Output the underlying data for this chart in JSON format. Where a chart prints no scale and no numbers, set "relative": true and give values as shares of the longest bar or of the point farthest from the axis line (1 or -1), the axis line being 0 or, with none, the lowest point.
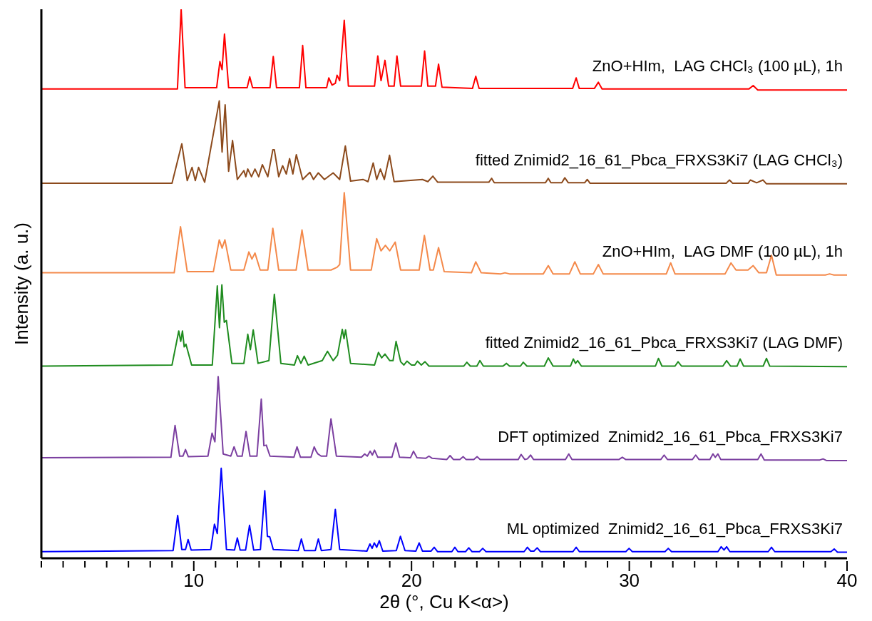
{
  "chart_data": {
    "type": "line",
    "relative": true,
    "xlabel": "2θ (°, Cu K<α>)",
    "ylabel": "Intensity (a. u.)",
    "xlim": [
      3,
      40
    ],
    "xticks": [
      {
        "value": 3,
        "label": null
      },
      {
        "value": 4,
        "label": null
      },
      {
        "value": 5,
        "label": null
      },
      {
        "value": 6,
        "label": null
      },
      {
        "value": 7,
        "label": null
      },
      {
        "value": 8,
        "label": null
      },
      {
        "value": 9,
        "label": null
      },
      10,
      {
        "value": 11,
        "label": null
      },
      {
        "value": 12,
        "label": null
      },
      {
        "value": 13,
        "label": null
      },
      {
        "value": 14,
        "label": null
      },
      {
        "value": 15,
        "label": null
      },
      {
        "value": 16,
        "label": null
      },
      {
        "value": 17,
        "label": null
      },
      {
        "value": 18,
        "label": null
      },
      {
        "value": 19,
        "label": null
      },
      20,
      {
        "value": 21,
        "label": null
      },
      {
        "value": 22,
        "label": null
      },
      {
        "value": 23,
        "label": null
      },
      {
        "value": 24,
        "label": null
      },
      {
        "value": 25,
        "label": null
      },
      {
        "value": 26,
        "label": null
      },
      {
        "value": 27,
        "label": null
      },
      {
        "value": 28,
        "label": null
      },
      {
        "value": 29,
        "label": null
      },
      30,
      {
        "value": 31,
        "label": null
      },
      {
        "value": 32,
        "label": null
      },
      {
        "value": 33,
        "label": null
      },
      {
        "value": 34,
        "label": null
      },
      {
        "value": 35,
        "label": null
      },
      {
        "value": 36,
        "label": null
      },
      {
        "value": 37,
        "label": null
      },
      {
        "value": 38,
        "label": null
      },
      {
        "value": 39,
        "label": null
      },
      40
    ],
    "series": [
      {
        "name": "ZnO+HIm,  LAG CHCl₃ (100 µL), 1h",
        "color": "#ff0000",
        "x": [
          3,
          9.25,
          9.42,
          9.6,
          11.05,
          11.2,
          11.3,
          11.41,
          11.6,
          12.45,
          12.57,
          12.7,
          13.5,
          13.65,
          13.8,
          14.85,
          15.0,
          15.15,
          16.1,
          16.2,
          16.35,
          16.5,
          16.58,
          16.7,
          16.91,
          17.1,
          18.3,
          18.45,
          18.6,
          18.78,
          18.95,
          19.2,
          19.33,
          19.5,
          20.45,
          20.6,
          20.75,
          21.1,
          21.24,
          21.4,
          22.8,
          22.95,
          23.1,
          27.4,
          27.56,
          27.7,
          28.4,
          28.58,
          28.75,
          35.5,
          35.69,
          35.9,
          40
        ],
        "values": [
          0.855,
          0.855,
          1.0,
          0.857,
          0.857,
          0.905,
          0.89,
          0.955,
          0.857,
          0.857,
          0.877,
          0.857,
          0.857,
          0.914,
          0.857,
          0.857,
          0.934,
          0.857,
          0.857,
          0.875,
          0.862,
          0.865,
          0.88,
          0.87,
          0.98,
          0.86,
          0.86,
          0.915,
          0.87,
          0.907,
          0.86,
          0.86,
          0.915,
          0.86,
          0.86,
          0.924,
          0.86,
          0.86,
          0.9,
          0.858,
          0.856,
          0.878,
          0.856,
          0.856,
          0.875,
          0.856,
          0.856,
          0.867,
          0.855,
          0.855,
          0.861,
          0.853,
          0.853
        ]
      },
      {
        "name": "fitted Znimid2_16_61_Pbca_FRXS3Ki7 (LAG CHCl₃)",
        "color": "#8c4a1c",
        "x": [
          3,
          9.0,
          9.45,
          9.7,
          9.92,
          10.07,
          10.22,
          10.5,
          11.17,
          11.3,
          11.44,
          11.6,
          11.78,
          12.0,
          12.3,
          12.39,
          12.48,
          12.65,
          12.81,
          12.98,
          13.15,
          13.4,
          13.63,
          13.7,
          13.9,
          14.08,
          14.25,
          14.4,
          14.55,
          14.71,
          15.0,
          15.33,
          15.5,
          15.72,
          16.0,
          16.4,
          16.7,
          16.96,
          17.2,
          17.77,
          18.0,
          18.24,
          18.4,
          18.57,
          18.75,
          18.99,
          19.2,
          20.5,
          20.75,
          20.98,
          21.2,
          23.55,
          23.68,
          23.8,
          26.15,
          26.28,
          26.4,
          26.9,
          27.04,
          27.2,
          27.95,
          28.07,
          28.2,
          34.45,
          34.6,
          34.75,
          35.45,
          35.56,
          35.85,
          36.14,
          36.3,
          40
        ],
        "values": [
          0.683,
          0.683,
          0.755,
          0.688,
          0.712,
          0.688,
          0.712,
          0.685,
          0.833,
          0.74,
          0.826,
          0.705,
          0.761,
          0.69,
          0.706,
          0.695,
          0.709,
          0.695,
          0.709,
          0.695,
          0.717,
          0.695,
          0.744,
          0.744,
          0.695,
          0.715,
          0.7,
          0.728,
          0.7,
          0.735,
          0.69,
          0.703,
          0.69,
          0.702,
          0.69,
          0.702,
          0.69,
          0.751,
          0.687,
          0.69,
          0.686,
          0.72,
          0.69,
          0.709,
          0.69,
          0.734,
          0.686,
          0.69,
          0.686,
          0.696,
          0.685,
          0.685,
          0.692,
          0.684,
          0.684,
          0.692,
          0.684,
          0.684,
          0.693,
          0.684,
          0.684,
          0.69,
          0.683,
          0.683,
          0.689,
          0.683,
          0.683,
          0.689,
          0.684,
          0.689,
          0.682,
          0.682
        ]
      },
      {
        "name": "ZnO+HIm,  LAG DMF (100 µL), 1h",
        "color": "#f4894a",
        "x": [
          3,
          9.1,
          9.39,
          9.7,
          10.9,
          11.17,
          11.3,
          11.43,
          11.7,
          12.3,
          12.53,
          12.67,
          12.81,
          13.05,
          13.4,
          13.63,
          13.9,
          14.7,
          14.97,
          15.25,
          16.3,
          16.58,
          16.7,
          16.91,
          17.2,
          18.15,
          18.4,
          18.6,
          18.8,
          19.0,
          19.25,
          19.5,
          20.35,
          20.59,
          20.85,
          21.0,
          21.24,
          21.5,
          22.75,
          22.95,
          23.2,
          24.1,
          24.29,
          24.5,
          26.05,
          26.28,
          26.5,
          27.25,
          27.5,
          27.75,
          28.35,
          28.58,
          28.8,
          31.7,
          31.9,
          32.1,
          34.4,
          34.67,
          34.9,
          35.45,
          35.69,
          35.95,
          36.3,
          36.53,
          36.75,
          39.0,
          39.2,
          39.4,
          40
        ],
        "values": [
          0.52,
          0.52,
          0.604,
          0.522,
          0.522,
          0.58,
          0.565,
          0.58,
          0.525,
          0.525,
          0.558,
          0.545,
          0.556,
          0.525,
          0.525,
          0.601,
          0.525,
          0.525,
          0.598,
          0.525,
          0.525,
          0.53,
          0.535,
          0.666,
          0.525,
          0.525,
          0.582,
          0.56,
          0.57,
          0.56,
          0.576,
          0.525,
          0.525,
          0.588,
          0.525,
          0.525,
          0.566,
          0.522,
          0.52,
          0.54,
          0.52,
          0.518,
          0.52,
          0.518,
          0.518,
          0.533,
          0.518,
          0.518,
          0.54,
          0.518,
          0.518,
          0.535,
          0.518,
          0.518,
          0.538,
          0.518,
          0.518,
          0.538,
          0.525,
          0.525,
          0.533,
          0.52,
          0.52,
          0.552,
          0.516,
          0.516,
          0.518,
          0.516,
          0.516
        ]
      },
      {
        "name": "fitted Znimid2_16_61_Pbca_FRXS3Ki7 (LAG DMF)",
        "color": "#1f8c1f",
        "x": [
          3,
          9.0,
          9.31,
          9.4,
          9.48,
          9.56,
          9.64,
          9.9,
          10.85,
          11.08,
          11.18,
          11.29,
          11.4,
          11.5,
          11.75,
          12.3,
          12.48,
          12.6,
          12.73,
          12.95,
          13.45,
          13.7,
          14.0,
          14.62,
          14.76,
          14.92,
          15.07,
          15.25,
          15.9,
          16.14,
          16.4,
          16.6,
          16.82,
          16.9,
          16.97,
          17.2,
          18.3,
          18.48,
          18.63,
          18.78,
          19.0,
          19.15,
          19.29,
          19.5,
          19.65,
          19.79,
          20.0,
          20.15,
          20.27,
          20.45,
          20.62,
          20.8,
          22.4,
          22.54,
          22.7,
          23.0,
          23.14,
          23.3,
          24.2,
          24.36,
          24.5,
          25.0,
          25.13,
          25.3,
          26.1,
          26.28,
          26.5,
          27.3,
          27.43,
          27.53,
          27.63,
          27.8,
          31.2,
          31.34,
          31.5,
          32.1,
          32.24,
          32.4,
          34.3,
          34.47,
          34.65,
          34.95,
          35.09,
          35.25,
          36.15,
          36.3,
          36.45,
          40
        ],
        "values": [
          0.35,
          0.352,
          0.414,
          0.395,
          0.414,
          0.385,
          0.39,
          0.352,
          0.352,
          0.496,
          0.42,
          0.498,
          0.43,
          0.433,
          0.355,
          0.355,
          0.408,
          0.38,
          0.416,
          0.355,
          0.36,
          0.481,
          0.355,
          0.352,
          0.369,
          0.355,
          0.368,
          0.352,
          0.36,
          0.377,
          0.36,
          0.37,
          0.417,
          0.4,
          0.416,
          0.355,
          0.352,
          0.375,
          0.365,
          0.372,
          0.36,
          0.36,
          0.395,
          0.358,
          0.352,
          0.359,
          0.352,
          0.352,
          0.359,
          0.352,
          0.358,
          0.35,
          0.35,
          0.357,
          0.35,
          0.35,
          0.36,
          0.35,
          0.35,
          0.355,
          0.35,
          0.35,
          0.357,
          0.35,
          0.35,
          0.365,
          0.35,
          0.35,
          0.363,
          0.355,
          0.36,
          0.35,
          0.35,
          0.364,
          0.35,
          0.35,
          0.358,
          0.35,
          0.35,
          0.36,
          0.35,
          0.35,
          0.363,
          0.35,
          0.35,
          0.364,
          0.35,
          0.349
        ]
      },
      {
        "name": "DFT optimized  Znimid2_16_61_Pbca_FRXS3Ki7",
        "color": "#7b3fa0",
        "x": [
          3,
          8.95,
          9.14,
          9.35,
          9.5,
          9.62,
          9.75,
          10.65,
          10.84,
          10.97,
          11.12,
          11.35,
          11.7,
          11.85,
          12.0,
          12.22,
          12.4,
          12.58,
          12.9,
          13.1,
          13.22,
          13.33,
          13.5,
          14.6,
          14.74,
          14.9,
          15.38,
          15.53,
          15.62,
          15.7,
          15.85,
          16.1,
          16.3,
          16.55,
          17.7,
          17.85,
          17.97,
          18.1,
          18.2,
          18.3,
          18.45,
          19.1,
          19.28,
          19.45,
          19.95,
          20.09,
          20.25,
          20.65,
          20.8,
          20.95,
          21.62,
          21.77,
          21.92,
          22.22,
          22.37,
          22.5,
          22.86,
          23.01,
          23.15,
          24.9,
          25.03,
          25.2,
          25.32,
          25.47,
          25.6,
          27.07,
          27.22,
          27.37,
          29.53,
          29.68,
          29.83,
          31.45,
          31.6,
          31.75,
          32.9,
          33.05,
          33.2,
          33.7,
          33.84,
          33.95,
          34.07,
          34.2,
          35.9,
          36.05,
          36.2,
          38.75,
          38.9,
          39.05,
          40
        ],
        "values": [
          0.183,
          0.184,
          0.242,
          0.186,
          0.186,
          0.198,
          0.185,
          0.186,
          0.228,
          0.212,
          0.331,
          0.19,
          0.186,
          0.203,
          0.186,
          0.186,
          0.231,
          0.186,
          0.186,
          0.29,
          0.205,
          0.206,
          0.186,
          0.184,
          0.203,
          0.184,
          0.184,
          0.203,
          0.195,
          0.19,
          0.186,
          0.186,
          0.254,
          0.186,
          0.184,
          0.19,
          0.186,
          0.195,
          0.188,
          0.197,
          0.184,
          0.184,
          0.21,
          0.184,
          0.183,
          0.195,
          0.183,
          0.182,
          0.186,
          0.182,
          0.18,
          0.187,
          0.18,
          0.18,
          0.185,
          0.18,
          0.18,
          0.185,
          0.18,
          0.18,
          0.189,
          0.18,
          0.181,
          0.188,
          0.18,
          0.18,
          0.19,
          0.18,
          0.18,
          0.184,
          0.18,
          0.18,
          0.188,
          0.18,
          0.18,
          0.188,
          0.18,
          0.18,
          0.19,
          0.184,
          0.19,
          0.18,
          0.18,
          0.19,
          0.179,
          0.179,
          0.181,
          0.178,
          0.178
        ]
      },
      {
        "name": "ML optimized  Znimid2_16_61_Pbca_FRXS3Ki7",
        "color": "#0000ff",
        "x": [
          3,
          9.05,
          9.26,
          9.45,
          9.62,
          9.74,
          9.88,
          10.78,
          10.95,
          11.08,
          11.26,
          11.5,
          11.87,
          12.0,
          12.13,
          12.38,
          12.56,
          12.75,
          13.06,
          13.26,
          13.38,
          13.49,
          13.65,
          14.8,
          14.94,
          15.08,
          15.58,
          15.72,
          15.86,
          16.3,
          16.5,
          16.7,
          17.95,
          18.09,
          18.19,
          18.29,
          18.4,
          18.52,
          18.68,
          19.3,
          19.49,
          19.7,
          20.2,
          20.35,
          20.5,
          20.9,
          21.04,
          21.2,
          21.85,
          21.99,
          22.13,
          22.48,
          22.63,
          22.78,
          23.12,
          23.27,
          23.42,
          25.17,
          25.32,
          25.47,
          25.62,
          25.77,
          25.92,
          27.41,
          27.56,
          27.71,
          29.84,
          29.99,
          30.14,
          31.64,
          31.79,
          31.94,
          34.07,
          34.22,
          34.35,
          34.47,
          34.62,
          36.38,
          36.53,
          36.68,
          39.26,
          39.41,
          39.56,
          40
        ],
        "values": [
          0.012,
          0.014,
          0.078,
          0.016,
          0.016,
          0.034,
          0.015,
          0.016,
          0.062,
          0.045,
          0.164,
          0.016,
          0.015,
          0.037,
          0.015,
          0.015,
          0.06,
          0.015,
          0.016,
          0.123,
          0.04,
          0.039,
          0.016,
          0.014,
          0.035,
          0.014,
          0.014,
          0.035,
          0.014,
          0.016,
          0.089,
          0.016,
          0.013,
          0.026,
          0.018,
          0.028,
          0.02,
          0.032,
          0.013,
          0.014,
          0.04,
          0.014,
          0.013,
          0.028,
          0.013,
          0.013,
          0.02,
          0.012,
          0.012,
          0.02,
          0.012,
          0.012,
          0.019,
          0.012,
          0.012,
          0.018,
          0.012,
          0.012,
          0.02,
          0.013,
          0.013,
          0.019,
          0.012,
          0.012,
          0.02,
          0.012,
          0.012,
          0.018,
          0.012,
          0.012,
          0.018,
          0.012,
          0.012,
          0.021,
          0.015,
          0.021,
          0.012,
          0.012,
          0.02,
          0.012,
          0.012,
          0.017,
          0.011,
          0.011
        ]
      }
    ]
  }
}
